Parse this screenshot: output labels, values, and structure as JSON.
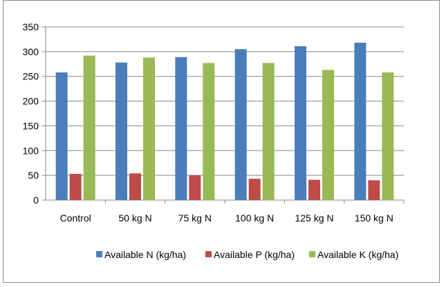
{
  "chart_data": {
    "type": "bar",
    "title": "",
    "xlabel": "",
    "ylabel": "",
    "categories": [
      "Control",
      "50 kg N",
      "75 kg N",
      "100 kg N",
      "125 kg N",
      "150 kg N"
    ],
    "series": [
      {
        "name": "Available N (kg/ha)",
        "color": "#4a7ebb",
        "values": [
          258,
          278,
          289,
          305,
          311,
          318
        ]
      },
      {
        "name": "Available P (kg/ha)",
        "color": "#be4b48",
        "values": [
          53,
          54,
          50,
          43,
          41,
          40
        ]
      },
      {
        "name": "Available K (kg/ha)",
        "color": "#98b954",
        "values": [
          292,
          288,
          277,
          277,
          263,
          258
        ]
      }
    ],
    "ylim": [
      0,
      350
    ],
    "yticks": [
      0,
      50,
      100,
      150,
      200,
      250,
      300,
      350
    ],
    "grid": true,
    "legend_position": "bottom"
  }
}
